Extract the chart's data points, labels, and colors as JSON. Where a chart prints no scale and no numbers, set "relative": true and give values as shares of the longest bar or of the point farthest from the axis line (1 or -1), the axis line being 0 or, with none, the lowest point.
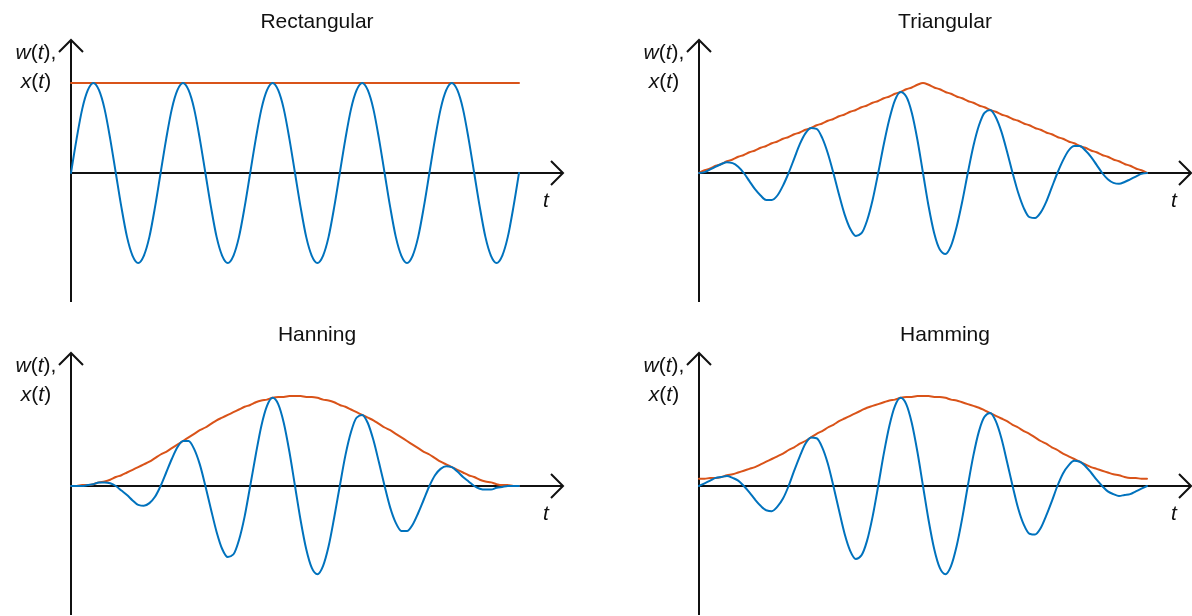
{
  "chart_data": [
    {
      "type": "line",
      "title": "Rectangular",
      "xlabel": "t",
      "ylabel": "w(t), x(t)",
      "relative": true,
      "categories": [
        null,
        null,
        null,
        null,
        null,
        null,
        null,
        null,
        null,
        null,
        null,
        null,
        null,
        null,
        null,
        null,
        null,
        null,
        null,
        null,
        null,
        null,
        null,
        null,
        null,
        null,
        null,
        null,
        null,
        null,
        null,
        null,
        null,
        null,
        null,
        null,
        null,
        null,
        null,
        null,
        null,
        null,
        null,
        null,
        null,
        null,
        null,
        null,
        null,
        null,
        null,
        null,
        null,
        null,
        null,
        null,
        null,
        null,
        null,
        null,
        null,
        null,
        null,
        null,
        null,
        null,
        null,
        null,
        null,
        null,
        null,
        null,
        null,
        null,
        null,
        null,
        null,
        null,
        null,
        null,
        null
      ],
      "series": [
        {
          "color": "#d95319",
          "values": [
            1,
            1,
            1,
            1,
            1,
            1,
            1,
            1,
            1,
            1,
            1,
            1,
            1,
            1,
            1,
            1,
            1,
            1,
            1,
            1,
            1,
            1,
            1,
            1,
            1,
            1,
            1,
            1,
            1,
            1,
            1,
            1,
            1,
            1,
            1,
            1,
            1,
            1,
            1,
            1,
            1,
            1,
            1,
            1,
            1,
            1,
            1,
            1,
            1,
            1,
            1,
            1,
            1,
            1,
            1,
            1,
            1,
            1,
            1,
            1,
            1,
            1,
            1,
            1,
            1,
            1,
            1,
            1,
            1,
            1,
            1,
            1,
            1,
            1,
            1,
            1,
            1,
            1,
            1,
            1,
            1
          ]
        },
        {
          "color": "#0072bd",
          "values": [
            0,
            0.38,
            0.71,
            0.92,
            1,
            0.92,
            0.71,
            0.38,
            0,
            -0.38,
            -0.71,
            -0.92,
            -1,
            -0.92,
            -0.71,
            -0.38,
            0,
            0.38,
            0.71,
            0.92,
            1,
            0.92,
            0.71,
            0.38,
            0,
            -0.38,
            -0.71,
            -0.92,
            -1,
            -0.92,
            -0.71,
            -0.38,
            0,
            0.38,
            0.71,
            0.92,
            1,
            0.92,
            0.71,
            0.38,
            0,
            -0.38,
            -0.71,
            -0.92,
            -1,
            -0.92,
            -0.71,
            -0.38,
            0,
            0.38,
            0.71,
            0.92,
            1,
            0.92,
            0.71,
            0.38,
            0,
            -0.38,
            -0.71,
            -0.92,
            -1,
            -0.92,
            -0.71,
            -0.38,
            0,
            0.38,
            0.71,
            0.92,
            1,
            0.92,
            0.71,
            0.38,
            0,
            -0.38,
            -0.71,
            -0.92,
            -1,
            -0.92,
            -0.71,
            -0.38,
            0
          ]
        }
      ]
    },
    {
      "type": "line",
      "title": "Triangular",
      "xlabel": "t",
      "ylabel": "w(t), x(t)",
      "relative": true,
      "categories": [
        null,
        null,
        null,
        null,
        null,
        null,
        null,
        null,
        null,
        null,
        null,
        null,
        null,
        null,
        null,
        null,
        null,
        null,
        null,
        null,
        null,
        null,
        null,
        null,
        null,
        null,
        null,
        null,
        null,
        null,
        null,
        null,
        null,
        null,
        null,
        null,
        null,
        null,
        null,
        null,
        null,
        null,
        null,
        null,
        null,
        null,
        null,
        null,
        null,
        null,
        null,
        null,
        null,
        null,
        null,
        null,
        null,
        null,
        null,
        null,
        null,
        null,
        null,
        null,
        null,
        null,
        null,
        null,
        null,
        null,
        null,
        null,
        null,
        null,
        null,
        null,
        null,
        null,
        null,
        null,
        null
      ],
      "series": [
        {
          "color": "#d95319",
          "values": [
            0,
            0.03,
            0.05,
            0.08,
            0.1,
            0.13,
            0.15,
            0.18,
            0.2,
            0.23,
            0.25,
            0.28,
            0.3,
            0.33,
            0.35,
            0.38,
            0.4,
            0.43,
            0.45,
            0.48,
            0.5,
            0.53,
            0.55,
            0.58,
            0.6,
            0.63,
            0.65,
            0.68,
            0.7,
            0.73,
            0.75,
            0.78,
            0.8,
            0.83,
            0.85,
            0.88,
            0.9,
            0.93,
            0.95,
            0.98,
            1,
            0.98,
            0.95,
            0.93,
            0.9,
            0.88,
            0.85,
            0.83,
            0.8,
            0.78,
            0.75,
            0.73,
            0.7,
            0.68,
            0.65,
            0.63,
            0.6,
            0.58,
            0.55,
            0.53,
            0.5,
            0.48,
            0.45,
            0.43,
            0.4,
            0.38,
            0.35,
            0.33,
            0.3,
            0.28,
            0.25,
            0.23,
            0.2,
            0.18,
            0.15,
            0.13,
            0.1,
            0.08,
            0.05,
            0.03,
            0
          ]
        },
        {
          "color": "#0072bd",
          "values": [
            0,
            0.01,
            0.04,
            0.07,
            0.1,
            0.12,
            0.11,
            0.07,
            0,
            -0.09,
            -0.18,
            -0.25,
            -0.3,
            -0.3,
            -0.25,
            -0.14,
            0,
            0.16,
            0.32,
            0.44,
            0.5,
            0.49,
            0.39,
            0.22,
            0,
            -0.24,
            -0.46,
            -0.62,
            -0.7,
            -0.67,
            -0.53,
            -0.3,
            0,
            0.32,
            0.6,
            0.81,
            0.9,
            0.85,
            0.67,
            0.37,
            0,
            -0.37,
            -0.67,
            -0.85,
            -0.9,
            -0.81,
            -0.6,
            -0.32,
            0,
            0.3,
            0.53,
            0.67,
            0.7,
            0.62,
            0.46,
            0.24,
            0,
            -0.22,
            -0.39,
            -0.49,
            -0.5,
            -0.44,
            -0.32,
            -0.16,
            0,
            0.14,
            0.25,
            0.3,
            0.3,
            0.25,
            0.18,
            0.09,
            0,
            -0.07,
            -0.11,
            -0.12,
            -0.1,
            -0.07,
            -0.04,
            -0.01,
            0
          ]
        }
      ]
    },
    {
      "type": "line",
      "title": "Hanning",
      "xlabel": "t",
      "ylabel": "w(t), x(t)",
      "relative": true,
      "categories": [
        null,
        null,
        null,
        null,
        null,
        null,
        null,
        null,
        null,
        null,
        null,
        null,
        null,
        null,
        null,
        null,
        null,
        null,
        null,
        null,
        null,
        null,
        null,
        null,
        null,
        null,
        null,
        null,
        null,
        null,
        null,
        null,
        null,
        null,
        null,
        null,
        null,
        null,
        null,
        null,
        null,
        null,
        null,
        null,
        null,
        null,
        null,
        null,
        null,
        null,
        null,
        null,
        null,
        null,
        null,
        null,
        null,
        null,
        null,
        null,
        null,
        null,
        null,
        null,
        null,
        null,
        null,
        null,
        null,
        null,
        null,
        null,
        null,
        null,
        null,
        null,
        null,
        null,
        null,
        null,
        null
      ],
      "series": [
        {
          "color": "#d95319",
          "values": [
            0,
            0,
            0.01,
            0.01,
            0.02,
            0.04,
            0.05,
            0.07,
            0.1,
            0.12,
            0.15,
            0.18,
            0.21,
            0.24,
            0.27,
            0.31,
            0.35,
            0.38,
            0.42,
            0.46,
            0.5,
            0.54,
            0.58,
            0.62,
            0.65,
            0.69,
            0.73,
            0.76,
            0.79,
            0.82,
            0.85,
            0.88,
            0.9,
            0.93,
            0.95,
            0.96,
            0.98,
            0.99,
            0.99,
            1,
            1,
            1,
            0.99,
            0.99,
            0.98,
            0.96,
            0.95,
            0.93,
            0.9,
            0.88,
            0.85,
            0.82,
            0.79,
            0.76,
            0.73,
            0.69,
            0.65,
            0.62,
            0.58,
            0.54,
            0.5,
            0.46,
            0.42,
            0.38,
            0.35,
            0.31,
            0.27,
            0.24,
            0.21,
            0.18,
            0.15,
            0.12,
            0.1,
            0.07,
            0.05,
            0.04,
            0.02,
            0.01,
            0.01,
            0,
            0
          ]
        },
        {
          "color": "#0072bd",
          "values": [
            0,
            0,
            0,
            0.01,
            0.02,
            0.04,
            0.04,
            0.03,
            0,
            -0.05,
            -0.1,
            -0.16,
            -0.21,
            -0.22,
            -0.19,
            -0.12,
            0,
            0.15,
            0.3,
            0.43,
            0.5,
            0.5,
            0.41,
            0.24,
            0,
            -0.26,
            -0.51,
            -0.7,
            -0.79,
            -0.76,
            -0.6,
            -0.34,
            0,
            0.35,
            0.67,
            0.89,
            0.98,
            0.91,
            0.7,
            0.38,
            0,
            -0.38,
            -0.7,
            -0.91,
            -0.98,
            -0.89,
            -0.67,
            -0.35,
            0,
            0.34,
            0.6,
            0.76,
            0.79,
            0.7,
            0.51,
            0.26,
            0,
            -0.24,
            -0.41,
            -0.5,
            -0.5,
            -0.43,
            -0.3,
            -0.15,
            0,
            0.12,
            0.19,
            0.22,
            0.21,
            0.16,
            0.1,
            0.05,
            0,
            -0.03,
            -0.04,
            -0.04,
            -0.02,
            -0.01,
            0,
            0,
            0
          ]
        }
      ]
    },
    {
      "type": "line",
      "title": "Hamming",
      "xlabel": "t",
      "ylabel": "w(t), x(t)",
      "relative": true,
      "categories": [
        null,
        null,
        null,
        null,
        null,
        null,
        null,
        null,
        null,
        null,
        null,
        null,
        null,
        null,
        null,
        null,
        null,
        null,
        null,
        null,
        null,
        null,
        null,
        null,
        null,
        null,
        null,
        null,
        null,
        null,
        null,
        null,
        null,
        null,
        null,
        null,
        null,
        null,
        null,
        null,
        null,
        null,
        null,
        null,
        null,
        null,
        null,
        null,
        null,
        null,
        null,
        null,
        null,
        null,
        null,
        null,
        null,
        null,
        null,
        null,
        null,
        null,
        null,
        null,
        null,
        null,
        null,
        null,
        null,
        null,
        null,
        null,
        null,
        null,
        null,
        null,
        null,
        null,
        null,
        null,
        null
      ],
      "series": [
        {
          "color": "#d95319",
          "values": [
            0.08,
            0.08,
            0.09,
            0.09,
            0.1,
            0.12,
            0.13,
            0.15,
            0.17,
            0.19,
            0.21,
            0.24,
            0.27,
            0.3,
            0.33,
            0.36,
            0.4,
            0.43,
            0.47,
            0.5,
            0.54,
            0.58,
            0.61,
            0.65,
            0.68,
            0.72,
            0.75,
            0.78,
            0.81,
            0.84,
            0.87,
            0.89,
            0.91,
            0.93,
            0.95,
            0.96,
            0.98,
            0.99,
            0.99,
            1,
            1,
            1,
            0.99,
            0.99,
            0.98,
            0.96,
            0.95,
            0.93,
            0.91,
            0.89,
            0.87,
            0.84,
            0.81,
            0.78,
            0.75,
            0.72,
            0.68,
            0.65,
            0.61,
            0.58,
            0.54,
            0.5,
            0.47,
            0.43,
            0.4,
            0.36,
            0.33,
            0.3,
            0.27,
            0.24,
            0.21,
            0.19,
            0.17,
            0.15,
            0.13,
            0.12,
            0.1,
            0.09,
            0.09,
            0.08,
            0.08
          ]
        },
        {
          "color": "#0072bd",
          "values": [
            0,
            0.03,
            0.06,
            0.09,
            0.1,
            0.11,
            0.09,
            0.06,
            0,
            -0.07,
            -0.15,
            -0.22,
            -0.27,
            -0.28,
            -0.23,
            -0.14,
            0,
            0.17,
            0.33,
            0.47,
            0.54,
            0.53,
            0.43,
            0.25,
            0,
            -0.27,
            -0.53,
            -0.72,
            -0.81,
            -0.77,
            -0.61,
            -0.34,
            0,
            0.36,
            0.67,
            0.89,
            0.98,
            0.91,
            0.7,
            0.38,
            0,
            -0.38,
            -0.7,
            -0.91,
            -0.98,
            -0.89,
            -0.67,
            -0.36,
            0,
            0.34,
            0.61,
            0.77,
            0.81,
            0.72,
            0.53,
            0.27,
            0,
            -0.25,
            -0.43,
            -0.53,
            -0.54,
            -0.47,
            -0.33,
            -0.17,
            0,
            0.14,
            0.23,
            0.28,
            0.27,
            0.22,
            0.15,
            0.07,
            0,
            -0.06,
            -0.09,
            -0.11,
            -0.1,
            -0.09,
            -0.06,
            -0.03,
            0
          ]
        }
      ]
    }
  ]
}
